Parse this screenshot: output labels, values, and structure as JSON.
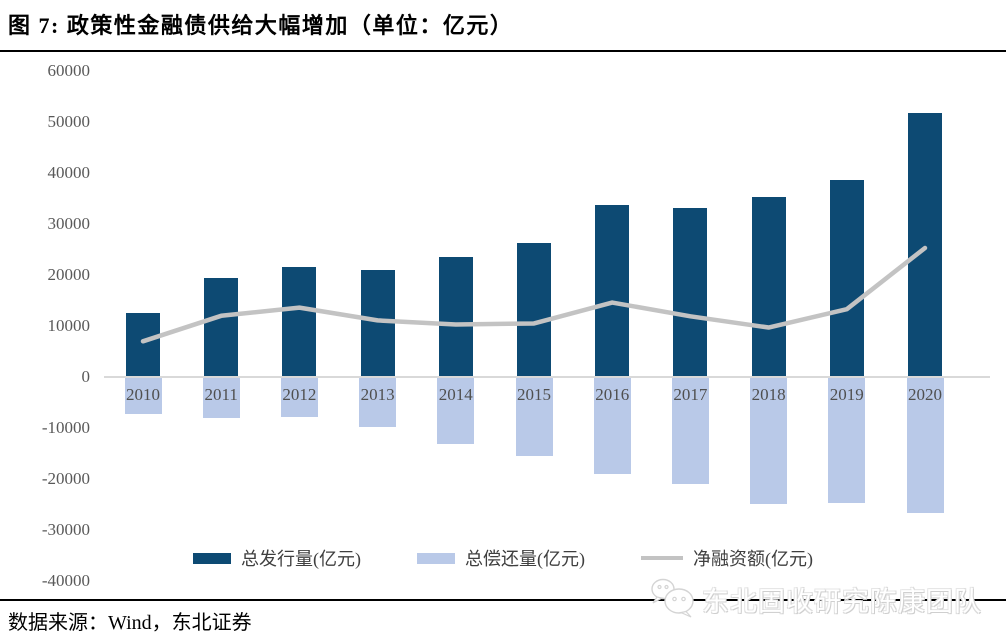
{
  "figure": {
    "title": "图 7: 政策性金融债供给大幅增加（单位：亿元）",
    "source": "数据来源：Wind，东北证券",
    "watermark": "东北固收研究陈康团队",
    "watermark_icon": "wechat-icon"
  },
  "colors": {
    "issuance_bar": "#0d4a73",
    "repayment_bar": "#b9c9e8",
    "net_line": "#c3c3c3",
    "axis_text": "#595959",
    "zero_line": "#d9d9d9",
    "divider": "#000000",
    "watermark": "#d6d6d6"
  },
  "chart_data": {
    "type": "bar",
    "subtype": "combo bar+line, positive issuance bars, negative repayment bars, net-financing line",
    "title": "图 7: 政策性金融债供给大幅增加（单位：亿元）",
    "xlabel": "",
    "ylabel": "",
    "categories": [
      "2010",
      "2011",
      "2012",
      "2013",
      "2014",
      "2015",
      "2016",
      "2017",
      "2018",
      "2019",
      "2020"
    ],
    "series": [
      {
        "name": "总发行量(亿元)",
        "type": "bar",
        "color": "#0d4a73",
        "values": [
          12600,
          19400,
          21600,
          20900,
          23500,
          26300,
          33800,
          33200,
          35200,
          38700,
          51700
        ]
      },
      {
        "name": "总偿还量(亿元)",
        "type": "bar",
        "color": "#b9c9e8",
        "values": [
          -7000,
          -7800,
          -7700,
          -9700,
          -13000,
          -15300,
          -18900,
          -20700,
          -24800,
          -24600,
          -26500
        ]
      },
      {
        "name": "净融资额(亿元)",
        "type": "line",
        "color": "#c3c3c3",
        "values": [
          7000,
          12000,
          13600,
          11100,
          10300,
          10500,
          14600,
          11900,
          9700,
          13300,
          25300
        ]
      }
    ],
    "ylim": [
      -40000,
      60000
    ],
    "yticks": [
      60000,
      50000,
      40000,
      30000,
      20000,
      10000,
      0,
      -10000,
      -20000,
      -30000,
      -40000
    ],
    "grid": false,
    "legend_position": "bottom"
  }
}
